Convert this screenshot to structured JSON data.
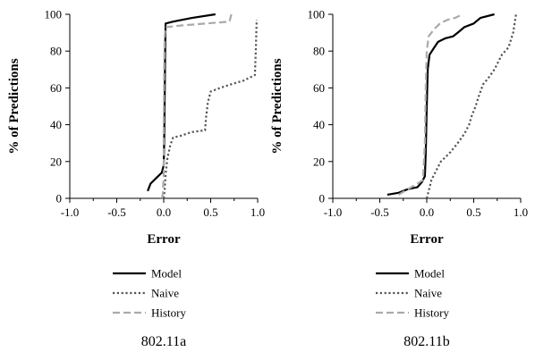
{
  "chart_data": [
    {
      "type": "line",
      "caption": "802.11a",
      "xlabel": "Error",
      "ylabel": "% of Predictions",
      "xlim": [
        -1.0,
        1.0
      ],
      "ylim": [
        0,
        100
      ],
      "xticks": [
        "-1.0",
        "-0.5",
        "0.0",
        "0.5",
        "1.0"
      ],
      "yticks": [
        "0",
        "20",
        "40",
        "60",
        "80",
        "100"
      ],
      "grid": false,
      "legend_position": "bottom-center",
      "series": [
        {
          "name": "Model",
          "style": "solid",
          "color": "#000000",
          "points": [
            [
              -0.17,
              4
            ],
            [
              -0.14,
              8
            ],
            [
              -0.08,
              11
            ],
            [
              -0.02,
              14
            ],
            [
              0.0,
              18
            ],
            [
              0.005,
              30
            ],
            [
              0.01,
              55
            ],
            [
              0.015,
              80
            ],
            [
              0.02,
              95
            ],
            [
              0.1,
              96
            ],
            [
              0.3,
              98
            ],
            [
              0.55,
              100
            ]
          ]
        },
        {
          "name": "Naive",
          "style": "dotted",
          "color": "#555555",
          "points": [
            [
              0.0,
              0
            ],
            [
              0.01,
              5
            ],
            [
              0.02,
              13
            ],
            [
              0.04,
              22
            ],
            [
              0.07,
              29
            ],
            [
              0.1,
              33
            ],
            [
              0.18,
              34
            ],
            [
              0.3,
              36
            ],
            [
              0.44,
              37
            ],
            [
              0.45,
              44
            ],
            [
              0.47,
              52
            ],
            [
              0.5,
              58
            ],
            [
              0.6,
              60
            ],
            [
              0.72,
              62
            ],
            [
              0.85,
              64
            ],
            [
              0.97,
              67
            ],
            [
              0.98,
              80
            ],
            [
              0.99,
              97
            ]
          ]
        },
        {
          "name": "History",
          "style": "dashed",
          "color": "#aaaaaa",
          "points": [
            [
              -0.02,
              0
            ],
            [
              -0.01,
              2
            ],
            [
              0.0,
              12
            ],
            [
              0.0,
              40
            ],
            [
              0.005,
              70
            ],
            [
              0.01,
              88
            ],
            [
              0.02,
              93
            ],
            [
              0.2,
              94
            ],
            [
              0.45,
              95
            ],
            [
              0.7,
              96
            ],
            [
              0.72,
              100
            ]
          ]
        }
      ]
    },
    {
      "type": "line",
      "caption": "802.11b",
      "xlabel": "Error",
      "ylabel": "% of Predictions",
      "xlim": [
        -1.0,
        1.0
      ],
      "ylim": [
        0,
        100
      ],
      "xticks": [
        "-1.0",
        "-0.5",
        "0.0",
        "0.5",
        "1.0"
      ],
      "yticks": [
        "0",
        "20",
        "40",
        "60",
        "80",
        "100"
      ],
      "grid": false,
      "legend_position": "bottom-center",
      "series": [
        {
          "name": "Model",
          "style": "solid",
          "color": "#000000",
          "points": [
            [
              -0.42,
              2
            ],
            [
              -0.3,
              3
            ],
            [
              -0.2,
              5
            ],
            [
              -0.1,
              6
            ],
            [
              -0.05,
              9
            ],
            [
              -0.02,
              12
            ],
            [
              -0.01,
              25
            ],
            [
              0.0,
              50
            ],
            [
              0.01,
              70
            ],
            [
              0.03,
              78
            ],
            [
              0.08,
              82
            ],
            [
              0.12,
              85
            ],
            [
              0.2,
              87
            ],
            [
              0.28,
              88
            ],
            [
              0.33,
              90
            ],
            [
              0.4,
              93
            ],
            [
              0.5,
              95
            ],
            [
              0.57,
              98
            ],
            [
              0.72,
              100
            ]
          ]
        },
        {
          "name": "Naive",
          "style": "dotted",
          "color": "#555555",
          "points": [
            [
              0.0,
              0
            ],
            [
              0.02,
              4
            ],
            [
              0.05,
              10
            ],
            [
              0.1,
              15
            ],
            [
              0.15,
              20
            ],
            [
              0.25,
              25
            ],
            [
              0.33,
              30
            ],
            [
              0.4,
              35
            ],
            [
              0.45,
              40
            ],
            [
              0.48,
              45
            ],
            [
              0.52,
              50
            ],
            [
              0.55,
              55
            ],
            [
              0.6,
              62
            ],
            [
              0.65,
              65
            ],
            [
              0.72,
              70
            ],
            [
              0.8,
              78
            ],
            [
              0.87,
              82
            ],
            [
              0.92,
              90
            ],
            [
              0.95,
              100
            ]
          ]
        },
        {
          "name": "History",
          "style": "dashed",
          "color": "#aaaaaa",
          "points": [
            [
              -0.3,
              2
            ],
            [
              -0.2,
              5
            ],
            [
              -0.1,
              8
            ],
            [
              -0.04,
              10
            ],
            [
              -0.02,
              30
            ],
            [
              -0.01,
              60
            ],
            [
              0.0,
              80
            ],
            [
              0.02,
              88
            ],
            [
              0.08,
              92
            ],
            [
              0.14,
              95
            ],
            [
              0.22,
              97
            ],
            [
              0.3,
              98
            ],
            [
              0.38,
              100
            ]
          ]
        }
      ]
    }
  ]
}
